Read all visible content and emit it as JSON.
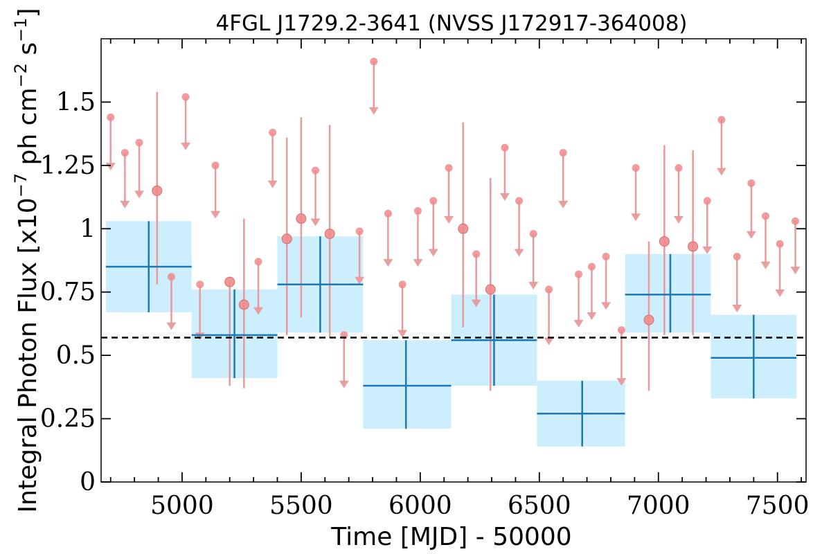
{
  "chart_data": {
    "type": "scatter",
    "title": "4FGL J1729.2-3641 (NVSS J172917-364008)",
    "xlabel": "Time [MJD] - 50000",
    "ylabel": "Integral Photon Flux [x10",
    "ylabel_exp": "−7",
    "ylabel_mid": " ph cm",
    "ylabel_exp2": "−2",
    "ylabel_mid2": " s",
    "ylabel_exp3": "−1",
    "ylabel_end": "]",
    "xlim": [
      4660,
      7620
    ],
    "ylim": [
      0,
      1.75
    ],
    "x_ticks": [
      5000,
      5500,
      6000,
      6500,
      7000,
      7500
    ],
    "x_tick_labels": [
      "5000",
      "5500",
      "6000",
      "6500",
      "7000",
      "7500"
    ],
    "y_ticks": [
      0,
      0.25,
      0.5,
      0.75,
      1,
      1.25,
      1.5
    ],
    "y_tick_labels": [
      "0",
      "0.25",
      "0.5",
      "0.75",
      "1",
      "1.25",
      "1.5"
    ],
    "reference_line": {
      "y": 0.57,
      "style": "dashed"
    },
    "series": [
      {
        "kind": "long-bins",
        "color": "#1f77b4",
        "band_color": "#cdeefc",
        "points": [
          {
            "x": 4860,
            "x_low": 4680,
            "x_high": 5040,
            "y": 0.85,
            "y_low": 0.67,
            "y_high": 1.03
          },
          {
            "x": 5220,
            "x_low": 5040,
            "x_high": 5400,
            "y": 0.58,
            "y_low": 0.41,
            "y_high": 0.76
          },
          {
            "x": 5580,
            "x_low": 5400,
            "x_high": 5760,
            "y": 0.78,
            "y_low": 0.59,
            "y_high": 0.97
          },
          {
            "x": 5940,
            "x_low": 5760,
            "x_high": 6130,
            "y": 0.38,
            "y_low": 0.21,
            "y_high": 0.56
          },
          {
            "x": 6310,
            "x_low": 6130,
            "x_high": 6490,
            "y": 0.56,
            "y_low": 0.38,
            "y_high": 0.74
          },
          {
            "x": 6680,
            "x_low": 6490,
            "x_high": 6860,
            "y": 0.27,
            "y_low": 0.14,
            "y_high": 0.4
          },
          {
            "x": 7050,
            "x_low": 6860,
            "x_high": 7220,
            "y": 0.74,
            "y_low": 0.59,
            "y_high": 0.9
          },
          {
            "x": 7400,
            "x_low": 7220,
            "x_high": 7580,
            "y": 0.49,
            "y_low": 0.33,
            "y_high": 0.66
          }
        ]
      },
      {
        "kind": "short-bins",
        "color": "#e8999b",
        "marker_color": "#ef8a8c",
        "detections": [
          {
            "x": 4895,
            "y": 1.15,
            "y_low": 0.78,
            "y_high": 1.54
          },
          {
            "x": 5200,
            "y": 0.79,
            "y_low": 0.38,
            "y_high": 0.79
          },
          {
            "x": 5260,
            "y": 0.7,
            "y_low": 0.37,
            "y_high": 1.04
          },
          {
            "x": 5440,
            "y": 0.96,
            "y_low": 0.58,
            "y_high": 1.36
          },
          {
            "x": 5500,
            "y": 1.04,
            "y_low": 0.65,
            "y_high": 1.44
          },
          {
            "x": 5620,
            "y": 0.98,
            "y_low": 0.57,
            "y_high": 1.41
          },
          {
            "x": 6180,
            "y": 1.0,
            "y_low": 0.61,
            "y_high": 1.42
          },
          {
            "x": 6295,
            "y": 0.76,
            "y_low": 0.36,
            "y_high": 1.2
          },
          {
            "x": 6960,
            "y": 0.64,
            "y_low": 0.36,
            "y_high": 0.95
          },
          {
            "x": 7025,
            "y": 0.95,
            "y_low": 0.58,
            "y_high": 1.33
          },
          {
            "x": 7145,
            "y": 0.93,
            "y_low": 0.58,
            "y_high": 1.31
          }
        ],
        "upper_limits": [
          {
            "x": 4700,
            "y_top": 1.44,
            "y_tip": 1.23
          },
          {
            "x": 4760,
            "y_top": 1.3,
            "y_tip": 1.08
          },
          {
            "x": 4820,
            "y_top": 1.34,
            "y_tip": 1.12
          },
          {
            "x": 4955,
            "y_top": 0.81,
            "y_tip": 0.6
          },
          {
            "x": 5015,
            "y_top": 1.52,
            "y_tip": 1.31
          },
          {
            "x": 5075,
            "y_top": 0.78,
            "y_tip": 0.56
          },
          {
            "x": 5140,
            "y_top": 1.25,
            "y_tip": 1.04
          },
          {
            "x": 5320,
            "y_top": 0.87,
            "y_tip": 0.66
          },
          {
            "x": 5380,
            "y_top": 1.38,
            "y_tip": 1.16
          },
          {
            "x": 5560,
            "y_top": 1.23,
            "y_tip": 1.01
          },
          {
            "x": 5680,
            "y_top": 0.58,
            "y_tip": 0.37
          },
          {
            "x": 5745,
            "y_top": 0.99,
            "y_tip": 0.78
          },
          {
            "x": 5805,
            "y_top": 1.66,
            "y_tip": 1.45
          },
          {
            "x": 5865,
            "y_top": 1.06,
            "y_tip": 0.85
          },
          {
            "x": 5925,
            "y_top": 0.78,
            "y_tip": 0.57
          },
          {
            "x": 5990,
            "y_top": 1.07,
            "y_tip": 0.85
          },
          {
            "x": 6055,
            "y_top": 1.11,
            "y_tip": 0.89
          },
          {
            "x": 6120,
            "y_top": 1.24,
            "y_tip": 1.02
          },
          {
            "x": 6235,
            "y_top": 0.9,
            "y_tip": 0.69
          },
          {
            "x": 6355,
            "y_top": 1.32,
            "y_tip": 1.11
          },
          {
            "x": 6415,
            "y_top": 1.11,
            "y_tip": 0.89
          },
          {
            "x": 6475,
            "y_top": 0.98,
            "y_tip": 0.76
          },
          {
            "x": 6540,
            "y_top": 0.76,
            "y_tip": 0.54
          },
          {
            "x": 6600,
            "y_top": 1.3,
            "y_tip": 1.08
          },
          {
            "x": 6665,
            "y_top": 0.82,
            "y_tip": 0.61
          },
          {
            "x": 6720,
            "y_top": 0.85,
            "y_tip": 0.64
          },
          {
            "x": 6780,
            "y_top": 0.89,
            "y_tip": 0.68
          },
          {
            "x": 6845,
            "y_top": 0.6,
            "y_tip": 0.38
          },
          {
            "x": 6905,
            "y_top": 1.24,
            "y_tip": 1.03
          },
          {
            "x": 7085,
            "y_top": 1.24,
            "y_tip": 1.02
          },
          {
            "x": 7205,
            "y_top": 1.11,
            "y_tip": 0.9
          },
          {
            "x": 7265,
            "y_top": 1.43,
            "y_tip": 1.21
          },
          {
            "x": 7330,
            "y_top": 0.89,
            "y_tip": 0.67
          },
          {
            "x": 7390,
            "y_top": 1.18,
            "y_tip": 0.96
          },
          {
            "x": 7450,
            "y_top": 1.05,
            "y_tip": 0.84
          },
          {
            "x": 7510,
            "y_top": 0.94,
            "y_tip": 0.73
          },
          {
            "x": 7575,
            "y_top": 1.03,
            "y_tip": 0.82
          }
        ]
      }
    ]
  }
}
